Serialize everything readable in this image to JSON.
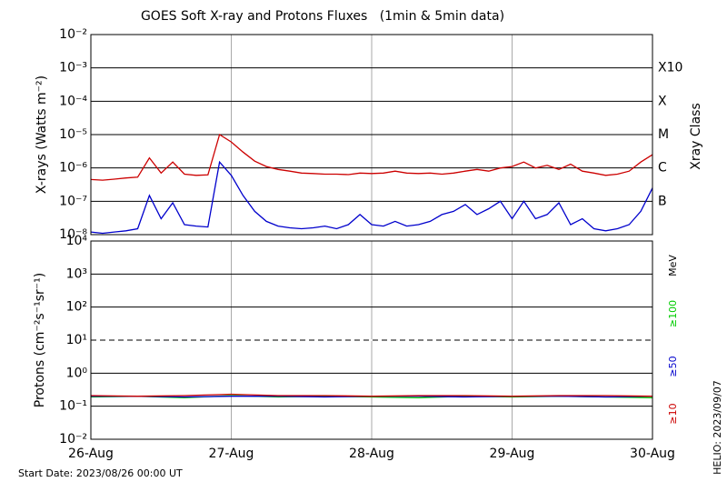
{
  "title": "GOES Soft X-ray and Protons Fluxes   (1min & 5min data)",
  "start_date": "Start Date: 2023/08/26 00:00 UT",
  "credit": "HELIO: 2023/09/07",
  "chart_data": [
    {
      "type": "line",
      "ylabel": "X-rays (Watts m⁻²)",
      "y2label": "Xray Class",
      "log_y": true,
      "grid": true,
      "ylim": [
        1e-08,
        0.01
      ],
      "yticks": [
        {
          "value": 1e-08,
          "label": "10⁻⁸"
        },
        {
          "value": 1e-07,
          "label": "10⁻⁷"
        },
        {
          "value": 1e-06,
          "label": "10⁻⁶"
        },
        {
          "value": 1e-05,
          "label": "10⁻⁵"
        },
        {
          "value": 0.0001,
          "label": "10⁻⁴"
        },
        {
          "value": 0.001,
          "label": "10⁻³"
        },
        {
          "value": 0.01,
          "label": "10⁻²"
        }
      ],
      "class_ticks": [
        {
          "value": 1e-07,
          "label": "B"
        },
        {
          "value": 1e-06,
          "label": "C"
        },
        {
          "value": 1e-05,
          "label": "M"
        },
        {
          "value": 0.0001,
          "label": "X"
        },
        {
          "value": 0.001,
          "label": "X10"
        }
      ],
      "x": [
        0,
        2,
        4,
        6,
        8,
        10,
        12,
        14,
        16,
        18,
        20,
        22,
        24,
        26,
        28,
        30,
        32,
        34,
        36,
        38,
        40,
        42,
        44,
        46,
        48,
        50,
        52,
        54,
        56,
        58,
        60,
        62,
        64,
        66,
        68,
        70,
        72,
        74,
        76,
        78,
        80,
        82,
        84,
        86,
        88,
        90,
        92,
        94,
        96
      ],
      "series": [
        {
          "color": "#cc0000",
          "values": [
            4.5e-07,
            4.3e-07,
            4.6e-07,
            5e-07,
            5.3e-07,
            2e-06,
            7e-07,
            1.5e-06,
            6.5e-07,
            6e-07,
            6.2e-07,
            1e-05,
            6e-06,
            3e-06,
            1.6e-06,
            1.1e-06,
            9e-07,
            8e-07,
            7e-07,
            6.8e-07,
            6.5e-07,
            6.5e-07,
            6.3e-07,
            7e-07,
            6.8e-07,
            7e-07,
            8e-07,
            7e-07,
            6.8e-07,
            7e-07,
            6.5e-07,
            7e-07,
            8e-07,
            9e-07,
            8e-07,
            1e-06,
            1.1e-06,
            1.5e-06,
            1e-06,
            1.2e-06,
            9e-07,
            1.3e-06,
            8e-07,
            7e-07,
            6e-07,
            6.5e-07,
            8e-07,
            1.5e-06,
            2.5e-06
          ]
        },
        {
          "color": "#0000cc",
          "values": [
            1.2e-08,
            1.1e-08,
            1.2e-08,
            1.3e-08,
            1.5e-08,
            1.5e-07,
            3e-08,
            9e-08,
            2e-08,
            1.8e-08,
            1.7e-08,
            1.5e-06,
            6e-07,
            1.5e-07,
            5e-08,
            2.5e-08,
            1.8e-08,
            1.6e-08,
            1.5e-08,
            1.6e-08,
            1.8e-08,
            1.5e-08,
            2e-08,
            4e-08,
            2e-08,
            1.8e-08,
            2.5e-08,
            1.8e-08,
            2e-08,
            2.5e-08,
            4e-08,
            5e-08,
            8e-08,
            4e-08,
            6e-08,
            1e-07,
            3e-08,
            1e-07,
            3e-08,
            4e-08,
            9e-08,
            2e-08,
            3e-08,
            1.5e-08,
            1.3e-08,
            1.5e-08,
            2e-08,
            5e-08,
            2.5e-07
          ]
        }
      ]
    },
    {
      "type": "line",
      "ylabel": "Protons (cm⁻²s⁻¹sr⁻¹)",
      "unit": "MeV",
      "log_y": true,
      "grid": true,
      "ylim": [
        0.01,
        10000.0
      ],
      "yticks": [
        {
          "value": 0.01,
          "label": "10⁻²"
        },
        {
          "value": 0.1,
          "label": "10⁻¹"
        },
        {
          "value": 1,
          "label": "10⁰"
        },
        {
          "value": 10,
          "label": "10¹"
        },
        {
          "value": 100,
          "label": "10²"
        },
        {
          "value": 1000,
          "label": "10³"
        },
        {
          "value": 10000,
          "label": "10⁴"
        }
      ],
      "threshold": 10,
      "xlim": [
        0,
        96
      ],
      "xticks": [
        {
          "value": 0,
          "label": "26-Aug"
        },
        {
          "value": 24,
          "label": "27-Aug"
        },
        {
          "value": 48,
          "label": "28-Aug"
        },
        {
          "value": 72,
          "label": "29-Aug"
        },
        {
          "value": 96,
          "label": "30-Aug"
        }
      ],
      "x": [
        0,
        8,
        16,
        24,
        32,
        40,
        48,
        56,
        64,
        72,
        80,
        88,
        96
      ],
      "series": [
        {
          "name": "≥100",
          "color": "#00cc00",
          "values": [
            0.19,
            0.2,
            0.18,
            0.21,
            0.19,
            0.2,
            0.19,
            0.18,
            0.2,
            0.19,
            0.2,
            0.19,
            0.18
          ]
        },
        {
          "name": "≥50",
          "color": "#0000cc",
          "values": [
            0.2,
            0.2,
            0.19,
            0.2,
            0.2,
            0.19,
            0.2,
            0.2,
            0.19,
            0.2,
            0.2,
            0.19,
            0.2
          ]
        },
        {
          "name": "≥10",
          "color": "#cc0000",
          "values": [
            0.21,
            0.2,
            0.21,
            0.23,
            0.21,
            0.21,
            0.2,
            0.21,
            0.21,
            0.2,
            0.21,
            0.21,
            0.2
          ]
        }
      ]
    }
  ]
}
